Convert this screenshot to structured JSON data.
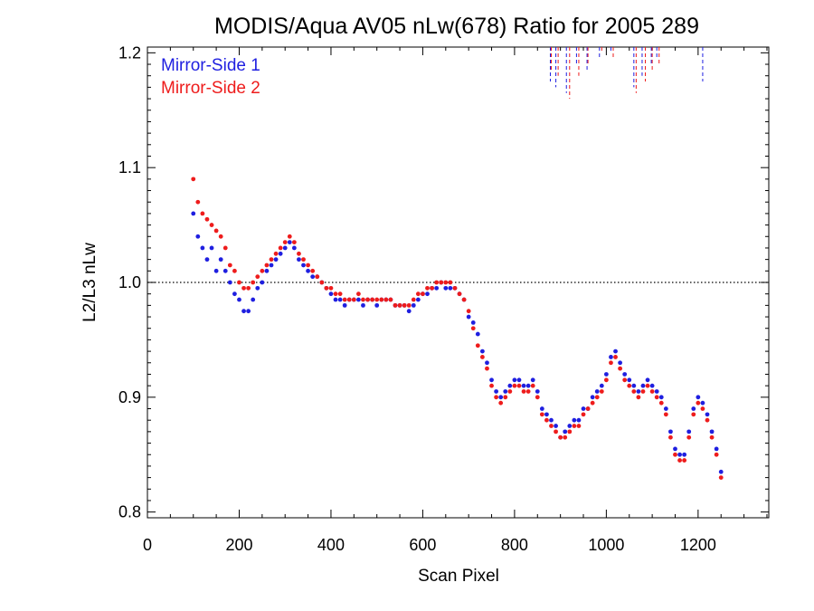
{
  "chart_data": {
    "type": "scatter",
    "title": "MODIS/Aqua AV05 nLw(678) Ratio for 2005 289",
    "xlabel": "Scan Pixel",
    "ylabel": "L2/L3 nLw",
    "xlim": [
      0,
      1354
    ],
    "ylim": [
      0.795,
      1.205
    ],
    "x_ticks": [
      "0",
      "200",
      "400",
      "600",
      "800",
      "1000",
      "1200"
    ],
    "y_ticks": [
      "0.8",
      "0.9",
      "1.0",
      "1.1",
      "1.2"
    ],
    "reference_line": 1.0,
    "legend_position": "top-left",
    "grid": false,
    "series": [
      {
        "name": "Mirror-Side 1",
        "color": "#1f1fe0",
        "points": [
          [
            100,
            1.06
          ],
          [
            110,
            1.04
          ],
          [
            120,
            1.03
          ],
          [
            130,
            1.02
          ],
          [
            140,
            1.03
          ],
          [
            150,
            1.01
          ],
          [
            160,
            1.02
          ],
          [
            170,
            1.01
          ],
          [
            180,
            1.0
          ],
          [
            190,
            0.99
          ],
          [
            200,
            0.985
          ],
          [
            210,
            0.975
          ],
          [
            220,
            0.975
          ],
          [
            230,
            0.985
          ],
          [
            240,
            0.995
          ],
          [
            250,
            1.0
          ],
          [
            260,
            1.01
          ],
          [
            270,
            1.015
          ],
          [
            280,
            1.02
          ],
          [
            290,
            1.025
          ],
          [
            300,
            1.03
          ],
          [
            310,
            1.035
          ],
          [
            320,
            1.03
          ],
          [
            330,
            1.02
          ],
          [
            340,
            1.015
          ],
          [
            350,
            1.01
          ],
          [
            360,
            1.005
          ],
          [
            370,
            1.005
          ],
          [
            380,
            1.0
          ],
          [
            390,
            0.995
          ],
          [
            400,
            0.99
          ],
          [
            410,
            0.985
          ],
          [
            420,
            0.985
          ],
          [
            430,
            0.98
          ],
          [
            440,
            0.985
          ],
          [
            450,
            0.985
          ],
          [
            460,
            0.985
          ],
          [
            470,
            0.98
          ],
          [
            480,
            0.985
          ],
          [
            490,
            0.985
          ],
          [
            500,
            0.98
          ],
          [
            510,
            0.985
          ],
          [
            520,
            0.985
          ],
          [
            530,
            0.985
          ],
          [
            540,
            0.98
          ],
          [
            550,
            0.98
          ],
          [
            560,
            0.98
          ],
          [
            570,
            0.975
          ],
          [
            580,
            0.98
          ],
          [
            590,
            0.985
          ],
          [
            600,
            0.99
          ],
          [
            610,
            0.99
          ],
          [
            620,
            0.995
          ],
          [
            630,
            0.995
          ],
          [
            640,
            1.0
          ],
          [
            650,
            0.995
          ],
          [
            660,
            0.995
          ],
          [
            670,
            0.995
          ],
          [
            680,
            0.99
          ],
          [
            690,
            0.985
          ],
          [
            700,
            0.97
          ],
          [
            710,
            0.965
          ],
          [
            720,
            0.955
          ],
          [
            730,
            0.94
          ],
          [
            740,
            0.93
          ],
          [
            750,
            0.915
          ],
          [
            760,
            0.905
          ],
          [
            770,
            0.9
          ],
          [
            780,
            0.905
          ],
          [
            790,
            0.91
          ],
          [
            800,
            0.915
          ],
          [
            810,
            0.915
          ],
          [
            820,
            0.91
          ],
          [
            830,
            0.91
          ],
          [
            840,
            0.915
          ],
          [
            850,
            0.905
          ],
          [
            860,
            0.89
          ],
          [
            870,
            0.885
          ],
          [
            880,
            0.88
          ],
          [
            890,
            0.875
          ],
          [
            900,
            0.865
          ],
          [
            910,
            0.87
          ],
          [
            920,
            0.875
          ],
          [
            930,
            0.88
          ],
          [
            940,
            0.88
          ],
          [
            950,
            0.89
          ],
          [
            960,
            0.89
          ],
          [
            970,
            0.9
          ],
          [
            980,
            0.905
          ],
          [
            990,
            0.91
          ],
          [
            1000,
            0.92
          ],
          [
            1010,
            0.935
          ],
          [
            1020,
            0.94
          ],
          [
            1030,
            0.93
          ],
          [
            1040,
            0.92
          ],
          [
            1050,
            0.915
          ],
          [
            1060,
            0.91
          ],
          [
            1070,
            0.905
          ],
          [
            1080,
            0.91
          ],
          [
            1090,
            0.915
          ],
          [
            1100,
            0.91
          ],
          [
            1110,
            0.905
          ],
          [
            1120,
            0.9
          ],
          [
            1130,
            0.89
          ],
          [
            1140,
            0.87
          ],
          [
            1150,
            0.855
          ],
          [
            1160,
            0.85
          ],
          [
            1170,
            0.85
          ],
          [
            1180,
            0.87
          ],
          [
            1190,
            0.89
          ],
          [
            1200,
            0.9
          ],
          [
            1210,
            0.895
          ],
          [
            1220,
            0.885
          ],
          [
            1230,
            0.87
          ],
          [
            1240,
            0.855
          ],
          [
            1250,
            0.835
          ]
        ]
      },
      {
        "name": "Mirror-Side 2",
        "color": "#ee1c1c",
        "points": [
          [
            100,
            1.09
          ],
          [
            110,
            1.07
          ],
          [
            120,
            1.06
          ],
          [
            130,
            1.055
          ],
          [
            140,
            1.05
          ],
          [
            150,
            1.045
          ],
          [
            160,
            1.04
          ],
          [
            170,
            1.03
          ],
          [
            180,
            1.015
          ],
          [
            190,
            1.01
          ],
          [
            200,
            1.0
          ],
          [
            210,
            0.995
          ],
          [
            220,
            0.995
          ],
          [
            230,
            1.0
          ],
          [
            240,
            1.005
          ],
          [
            250,
            1.01
          ],
          [
            260,
            1.015
          ],
          [
            270,
            1.02
          ],
          [
            280,
            1.025
          ],
          [
            290,
            1.03
          ],
          [
            300,
            1.035
          ],
          [
            310,
            1.04
          ],
          [
            320,
            1.035
          ],
          [
            330,
            1.025
          ],
          [
            340,
            1.02
          ],
          [
            350,
            1.015
          ],
          [
            360,
            1.01
          ],
          [
            370,
            1.005
          ],
          [
            380,
            1.0
          ],
          [
            390,
            0.995
          ],
          [
            400,
            0.995
          ],
          [
            410,
            0.99
          ],
          [
            420,
            0.99
          ],
          [
            430,
            0.985
          ],
          [
            440,
            0.985
          ],
          [
            450,
            0.985
          ],
          [
            460,
            0.99
          ],
          [
            470,
            0.985
          ],
          [
            480,
            0.985
          ],
          [
            490,
            0.985
          ],
          [
            500,
            0.985
          ],
          [
            510,
            0.985
          ],
          [
            520,
            0.985
          ],
          [
            530,
            0.985
          ],
          [
            540,
            0.98
          ],
          [
            550,
            0.98
          ],
          [
            560,
            0.98
          ],
          [
            570,
            0.98
          ],
          [
            580,
            0.985
          ],
          [
            590,
            0.99
          ],
          [
            600,
            0.99
          ],
          [
            610,
            0.995
          ],
          [
            620,
            0.995
          ],
          [
            630,
            1.0
          ],
          [
            640,
            1.0
          ],
          [
            650,
            1.0
          ],
          [
            660,
            1.0
          ],
          [
            670,
            0.995
          ],
          [
            680,
            0.99
          ],
          [
            690,
            0.985
          ],
          [
            700,
            0.975
          ],
          [
            710,
            0.96
          ],
          [
            720,
            0.945
          ],
          [
            730,
            0.935
          ],
          [
            740,
            0.925
          ],
          [
            750,
            0.91
          ],
          [
            760,
            0.9
          ],
          [
            770,
            0.895
          ],
          [
            780,
            0.9
          ],
          [
            790,
            0.905
          ],
          [
            800,
            0.91
          ],
          [
            810,
            0.91
          ],
          [
            820,
            0.905
          ],
          [
            830,
            0.905
          ],
          [
            840,
            0.91
          ],
          [
            850,
            0.9
          ],
          [
            860,
            0.885
          ],
          [
            870,
            0.88
          ],
          [
            880,
            0.875
          ],
          [
            890,
            0.87
          ],
          [
            900,
            0.865
          ],
          [
            910,
            0.865
          ],
          [
            920,
            0.87
          ],
          [
            930,
            0.875
          ],
          [
            940,
            0.875
          ],
          [
            950,
            0.885
          ],
          [
            960,
            0.89
          ],
          [
            970,
            0.895
          ],
          [
            980,
            0.9
          ],
          [
            990,
            0.905
          ],
          [
            1000,
            0.915
          ],
          [
            1010,
            0.93
          ],
          [
            1020,
            0.935
          ],
          [
            1030,
            0.925
          ],
          [
            1040,
            0.915
          ],
          [
            1050,
            0.91
          ],
          [
            1060,
            0.905
          ],
          [
            1070,
            0.9
          ],
          [
            1080,
            0.905
          ],
          [
            1090,
            0.91
          ],
          [
            1100,
            0.905
          ],
          [
            1110,
            0.9
          ],
          [
            1120,
            0.895
          ],
          [
            1130,
            0.885
          ],
          [
            1140,
            0.865
          ],
          [
            1150,
            0.85
          ],
          [
            1160,
            0.845
          ],
          [
            1170,
            0.845
          ],
          [
            1180,
            0.865
          ],
          [
            1190,
            0.885
          ],
          [
            1200,
            0.895
          ],
          [
            1210,
            0.89
          ],
          [
            1220,
            0.88
          ],
          [
            1230,
            0.865
          ],
          [
            1240,
            0.85
          ],
          [
            1250,
            0.83
          ]
        ]
      }
    ],
    "out_of_range_spikes": [
      {
        "series": "Mirror-Side 1",
        "x": [
          878,
          890,
          913,
          935,
          958,
          985,
          1010,
          1060,
          1078,
          1098,
          1110,
          1210
        ],
        "min_y": [
          1.175,
          1.17,
          1.165,
          1.19,
          1.185,
          1.195,
          1.2,
          1.17,
          1.18,
          1.19,
          1.195,
          1.175
        ]
      },
      {
        "series": "Mirror-Side 2",
        "x": [
          880,
          895,
          920,
          940,
          960,
          990,
          1015,
          1065,
          1085,
          1100,
          1115
        ],
        "min_y": [
          1.185,
          1.18,
          1.16,
          1.18,
          1.19,
          1.2,
          1.195,
          1.165,
          1.175,
          1.185,
          1.19
        ]
      }
    ]
  }
}
